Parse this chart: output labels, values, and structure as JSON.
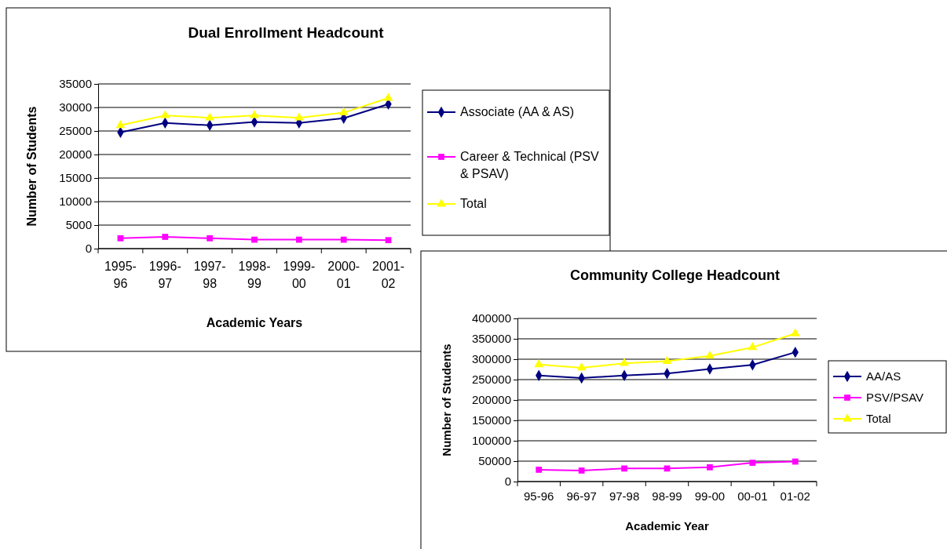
{
  "chart_data": [
    {
      "type": "line",
      "title": "Dual Enrollment Headcount",
      "xlabel": "Academic Years",
      "ylabel": "Number of Students",
      "categories": [
        "1995-96",
        "1996-97",
        "1997-98",
        "1998-99",
        "1999-00",
        "2000-01",
        "2001-02"
      ],
      "series": [
        {
          "name": "Associate (AA & AS)",
          "color": "#000080",
          "marker": "diamond",
          "values": [
            24700,
            26700,
            26200,
            26900,
            26700,
            27700,
            30700
          ]
        },
        {
          "name": "Career & Technical (PSV & PSAV)",
          "color": "#ff00ff",
          "marker": "square",
          "values": [
            2200,
            2500,
            2200,
            1900,
            1900,
            1900,
            1800
          ]
        },
        {
          "name": "Total",
          "color": "#ffff00",
          "marker": "triangle",
          "values": [
            26200,
            28300,
            27800,
            28300,
            27800,
            28900,
            32000
          ]
        }
      ],
      "ylim": [
        0,
        35000
      ],
      "yticks": [
        0,
        5000,
        10000,
        15000,
        20000,
        25000,
        30000,
        35000
      ],
      "grid": "y",
      "legend": "right"
    },
    {
      "type": "line",
      "title": "Community College Headcount",
      "xlabel": "Academic Year",
      "ylabel": "Number of Students",
      "categories": [
        "95-96",
        "96-97",
        "97-98",
        "98-99",
        "99-00",
        "00-01",
        "01-02"
      ],
      "series": [
        {
          "name": "AA/AS",
          "color": "#000080",
          "marker": "diamond",
          "values": [
            260000,
            254000,
            260000,
            265000,
            276000,
            286000,
            317000
          ]
        },
        {
          "name": "PSV/PSAV",
          "color": "#ff00ff",
          "marker": "square",
          "values": [
            29000,
            27000,
            32000,
            32000,
            35000,
            46000,
            49000
          ]
        },
        {
          "name": "Total",
          "color": "#ffff00",
          "marker": "triangle",
          "values": [
            287000,
            279000,
            290000,
            295000,
            308000,
            329000,
            363000
          ]
        }
      ],
      "ylim": [
        0,
        400000
      ],
      "yticks": [
        0,
        50000,
        100000,
        150000,
        200000,
        250000,
        300000,
        350000,
        400000
      ],
      "grid": "y",
      "legend": "right"
    }
  ]
}
